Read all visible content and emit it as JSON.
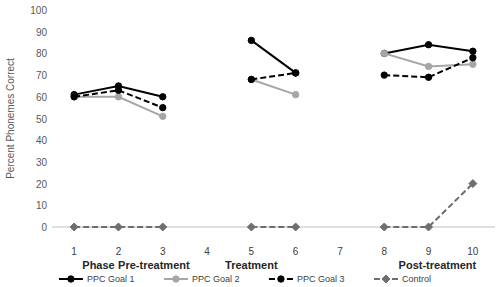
{
  "chart_data": {
    "type": "line",
    "y_label": "Percent Phonemes Correct",
    "x": [
      1,
      2,
      3,
      4,
      5,
      6,
      7,
      8,
      9,
      10
    ],
    "xlim": [
      0.5,
      10.5
    ],
    "xticks": [
      1,
      2,
      3,
      4,
      5,
      6,
      7,
      8,
      9,
      10
    ],
    "ylim": [
      0,
      100
    ],
    "yticks": [
      0,
      10,
      20,
      30,
      40,
      50,
      60,
      70,
      80,
      90,
      100
    ],
    "grid": false,
    "legend": "bottom",
    "annotations": [
      {
        "text": "Phase",
        "x": 1.55
      },
      {
        "text": "Pre-treatment",
        "x": 2.8
      },
      {
        "text": "Treatment",
        "x": 5.0
      },
      {
        "text": "Post-treatment",
        "x": 9.2
      }
    ],
    "series": [
      {
        "name": "PPC Goal 1",
        "color": "#000000",
        "marker": "circle",
        "line_style": "solid",
        "values": [
          61,
          65,
          60,
          null,
          86,
          71,
          null,
          80,
          84,
          81
        ]
      },
      {
        "name": "PPC Goal 2",
        "color": "#a6a6a6",
        "marker": "circle",
        "line_style": "solid",
        "values": [
          60,
          60,
          51,
          null,
          68,
          61,
          null,
          80,
          74,
          75
        ]
      },
      {
        "name": "PPC Goal 3",
        "color": "#000000",
        "marker": "circle",
        "line_style": "dashed",
        "values": [
          60,
          63,
          55,
          null,
          68,
          71,
          null,
          70,
          69,
          78
        ]
      },
      {
        "name": "Control",
        "color": "#6e6e6e",
        "marker": "diamond",
        "line_style": "dashed",
        "values": [
          0,
          0,
          0,
          null,
          0,
          0,
          null,
          0,
          0,
          20
        ]
      }
    ]
  }
}
